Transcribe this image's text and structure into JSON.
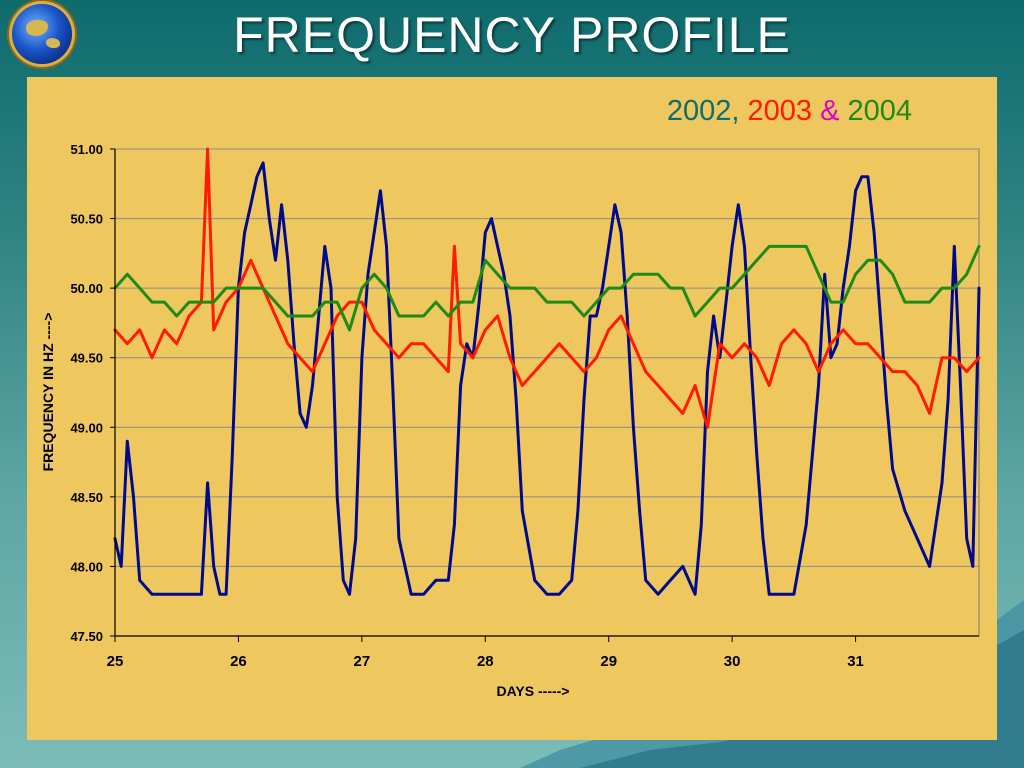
{
  "slide": {
    "title": "FREQUENCY PROFILE"
  },
  "legend_title": {
    "y2002": "2002,",
    "y2003": "2003",
    "amp": "&",
    "y2004": "2004"
  },
  "colors": {
    "background": "#2f8483",
    "plot_panel": "#efc75f",
    "series_2002": "#000a8c",
    "series_2003": "#ff1a00",
    "series_2004": "#1f8a14",
    "gridline": "#8c8c8c"
  },
  "icons": {
    "logo": "globe-icon"
  },
  "chart_data": {
    "type": "line",
    "title": "",
    "xlabel": "DAYS ----->",
    "ylabel": "FREQUENCY IN HZ ---->",
    "xlim": [
      25,
      32
    ],
    "ylim": [
      47.5,
      51.0
    ],
    "x_ticks": [
      25,
      26,
      27,
      28,
      29,
      30,
      31
    ],
    "y_ticks": [
      47.5,
      48.0,
      48.5,
      49.0,
      49.5,
      50.0,
      50.5,
      51.0
    ],
    "y_tick_labels": [
      "47.50",
      "48.00",
      "48.50",
      "49.00",
      "49.50",
      "50.00",
      "50.50",
      "51.00"
    ],
    "grid": "horizontal",
    "legend": "top-right",
    "series": [
      {
        "name": "2002",
        "color": "#000a8c",
        "x": [
          25.0,
          25.05,
          25.1,
          25.15,
          25.2,
          25.3,
          25.4,
          25.5,
          25.6,
          25.7,
          25.75,
          25.8,
          25.85,
          25.9,
          25.95,
          26.0,
          26.05,
          26.1,
          26.15,
          26.2,
          26.25,
          26.3,
          26.35,
          26.4,
          26.45,
          26.5,
          26.55,
          26.6,
          26.65,
          26.7,
          26.75,
          26.8,
          26.85,
          26.9,
          26.95,
          27.0,
          27.05,
          27.1,
          27.15,
          27.2,
          27.25,
          27.3,
          27.4,
          27.5,
          27.6,
          27.7,
          27.75,
          27.8,
          27.85,
          27.9,
          27.95,
          28.0,
          28.05,
          28.1,
          28.15,
          28.2,
          28.25,
          28.3,
          28.4,
          28.5,
          28.6,
          28.7,
          28.75,
          28.8,
          28.85,
          28.9,
          28.95,
          29.0,
          29.05,
          29.1,
          29.15,
          29.2,
          29.25,
          29.3,
          29.4,
          29.5,
          29.6,
          29.7,
          29.75,
          29.8,
          29.85,
          29.9,
          29.95,
          30.0,
          30.05,
          30.1,
          30.15,
          30.2,
          30.25,
          30.3,
          30.4,
          30.5,
          30.6,
          30.7,
          30.75,
          30.8,
          30.85,
          30.9,
          30.95,
          31.0,
          31.05,
          31.1,
          31.15,
          31.2,
          31.25,
          31.3,
          31.4,
          31.5,
          31.6,
          31.7,
          31.75,
          31.8,
          31.85,
          31.9,
          31.95,
          32.0
        ],
        "y": [
          48.2,
          48.0,
          48.9,
          48.5,
          47.9,
          47.8,
          47.8,
          47.8,
          47.8,
          47.8,
          48.6,
          48.0,
          47.8,
          47.8,
          48.8,
          50.0,
          50.4,
          50.6,
          50.8,
          50.9,
          50.5,
          50.2,
          50.6,
          50.2,
          49.6,
          49.1,
          49.0,
          49.3,
          49.8,
          50.3,
          50.0,
          48.5,
          47.9,
          47.8,
          48.2,
          49.5,
          50.1,
          50.4,
          50.7,
          50.3,
          49.3,
          48.2,
          47.8,
          47.8,
          47.9,
          47.9,
          48.3,
          49.3,
          49.6,
          49.5,
          49.9,
          50.4,
          50.5,
          50.3,
          50.1,
          49.8,
          49.2,
          48.4,
          47.9,
          47.8,
          47.8,
          47.9,
          48.4,
          49.2,
          49.8,
          49.8,
          50.0,
          50.3,
          50.6,
          50.4,
          49.8,
          49.0,
          48.4,
          47.9,
          47.8,
          47.9,
          48.0,
          47.8,
          48.3,
          49.4,
          49.8,
          49.5,
          49.9,
          50.3,
          50.6,
          50.3,
          49.5,
          48.8,
          48.2,
          47.8,
          47.8,
          47.8,
          48.3,
          49.3,
          50.1,
          49.5,
          49.6,
          50.0,
          50.3,
          50.7,
          50.8,
          50.8,
          50.4,
          49.8,
          49.2,
          48.7,
          48.4,
          48.2,
          48.0,
          48.6,
          49.2,
          50.3,
          49.3,
          48.2,
          48.0,
          50.0
        ]
      },
      {
        "name": "2003",
        "color": "#ff1a00",
        "x": [
          25.0,
          25.1,
          25.2,
          25.3,
          25.4,
          25.5,
          25.6,
          25.7,
          25.75,
          25.8,
          25.9,
          26.0,
          26.1,
          26.2,
          26.3,
          26.4,
          26.5,
          26.6,
          26.7,
          26.8,
          26.9,
          27.0,
          27.1,
          27.2,
          27.3,
          27.4,
          27.5,
          27.6,
          27.7,
          27.75,
          27.8,
          27.9,
          28.0,
          28.1,
          28.2,
          28.3,
          28.4,
          28.5,
          28.6,
          28.7,
          28.8,
          28.9,
          29.0,
          29.1,
          29.2,
          29.3,
          29.4,
          29.5,
          29.6,
          29.7,
          29.8,
          29.9,
          30.0,
          30.1,
          30.2,
          30.3,
          30.4,
          30.5,
          30.6,
          30.7,
          30.8,
          30.9,
          31.0,
          31.1,
          31.2,
          31.3,
          31.4,
          31.5,
          31.6,
          31.7,
          31.8,
          31.9,
          32.0
        ],
        "y": [
          49.7,
          49.6,
          49.7,
          49.5,
          49.7,
          49.6,
          49.8,
          49.9,
          51.0,
          49.7,
          49.9,
          50.0,
          50.2,
          50.0,
          49.8,
          49.6,
          49.5,
          49.4,
          49.6,
          49.8,
          49.9,
          49.9,
          49.7,
          49.6,
          49.5,
          49.6,
          49.6,
          49.5,
          49.4,
          50.3,
          49.6,
          49.5,
          49.7,
          49.8,
          49.5,
          49.3,
          49.4,
          49.5,
          49.6,
          49.5,
          49.4,
          49.5,
          49.7,
          49.8,
          49.6,
          49.4,
          49.3,
          49.2,
          49.1,
          49.3,
          49.0,
          49.6,
          49.5,
          49.6,
          49.5,
          49.3,
          49.6,
          49.7,
          49.6,
          49.4,
          49.6,
          49.7,
          49.6,
          49.6,
          49.5,
          49.4,
          49.4,
          49.3,
          49.1,
          49.5,
          49.5,
          49.4,
          49.5
        ]
      },
      {
        "name": "2004",
        "color": "#1f8a14",
        "x": [
          25.0,
          25.1,
          25.2,
          25.3,
          25.4,
          25.5,
          25.6,
          25.7,
          25.8,
          25.9,
          26.0,
          26.1,
          26.2,
          26.3,
          26.4,
          26.5,
          26.6,
          26.7,
          26.8,
          26.9,
          27.0,
          27.1,
          27.2,
          27.3,
          27.4,
          27.5,
          27.6,
          27.7,
          27.8,
          27.9,
          28.0,
          28.1,
          28.2,
          28.3,
          28.4,
          28.5,
          28.6,
          28.7,
          28.8,
          28.9,
          29.0,
          29.1,
          29.2,
          29.3,
          29.4,
          29.5,
          29.6,
          29.7,
          29.8,
          29.9,
          30.0,
          30.1,
          30.2,
          30.3,
          30.4,
          30.5,
          30.6,
          30.7,
          30.8,
          30.9,
          31.0,
          31.1,
          31.2,
          31.3,
          31.4,
          31.5,
          31.6,
          31.7,
          31.8,
          31.9,
          32.0
        ],
        "y": [
          50.0,
          50.1,
          50.0,
          49.9,
          49.9,
          49.8,
          49.9,
          49.9,
          49.9,
          50.0,
          50.0,
          50.0,
          50.0,
          49.9,
          49.8,
          49.8,
          49.8,
          49.9,
          49.9,
          49.7,
          50.0,
          50.1,
          50.0,
          49.8,
          49.8,
          49.8,
          49.9,
          49.8,
          49.9,
          49.9,
          50.2,
          50.1,
          50.0,
          50.0,
          50.0,
          49.9,
          49.9,
          49.9,
          49.8,
          49.9,
          50.0,
          50.0,
          50.1,
          50.1,
          50.1,
          50.0,
          50.0,
          49.8,
          49.9,
          50.0,
          50.0,
          50.1,
          50.2,
          50.3,
          50.3,
          50.3,
          50.3,
          50.1,
          49.9,
          49.9,
          50.1,
          50.2,
          50.2,
          50.1,
          49.9,
          49.9,
          49.9,
          50.0,
          50.0,
          50.1,
          50.3
        ]
      }
    ]
  }
}
